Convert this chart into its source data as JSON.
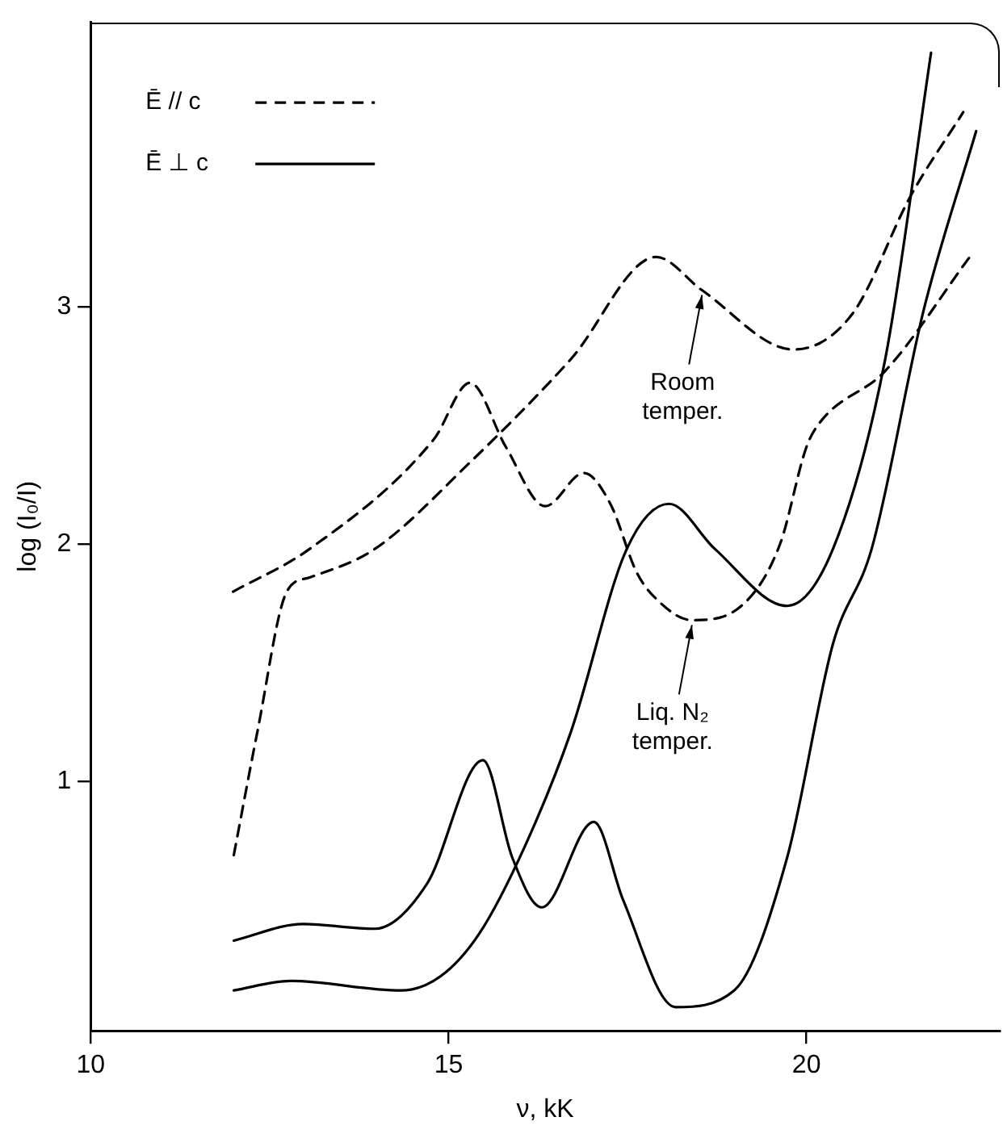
{
  "chart_data": {
    "type": "line",
    "xlabel": "ν, kK",
    "ylabel": "log (I₀/I)",
    "xlim": [
      10,
      22.7
    ],
    "ylim": [
      -0.05,
      4.2
    ],
    "xticks": [
      10,
      15,
      20
    ],
    "yticks": [
      1,
      2,
      3
    ],
    "grid": false,
    "legend": "top left",
    "marker": "none",
    "annotations": [
      {
        "text": "Room\ntemper.",
        "x": 18.54,
        "y": 3.07
      },
      {
        "text": "Liq. N₂\ntemper.",
        "x": 18.4,
        "y": 1.68
      }
    ],
    "series": [
      {
        "name": "Ē // c",
        "color": "#000000",
        "line_style": "dashed",
        "x": [
          12.0,
          12.33,
          12.74,
          13.06,
          13.97,
          15.25,
          16.71,
          17.9,
          18.54,
          19.82,
          20.64,
          21.46,
          22.19
        ],
        "values": [
          0.69,
          1.21,
          1.8,
          1.86,
          1.98,
          2.33,
          2.78,
          3.21,
          3.07,
          2.82,
          2.97,
          3.47,
          3.82
        ]
      },
      {
        "color": "#000000",
        "line_style": "dashed",
        "x": [
          11.99,
          13.06,
          14.79,
          15.3,
          15.8,
          16.35,
          16.89,
          17.26,
          17.63,
          17.9,
          18.4,
          19.09,
          19.63,
          20.0,
          20.18,
          21.1,
          22.28
        ],
        "values": [
          1.8,
          1.98,
          2.44,
          2.68,
          2.41,
          2.16,
          2.3,
          2.17,
          1.88,
          1.77,
          1.68,
          1.74,
          2.0,
          2.41,
          2.51,
          2.73,
          3.21
        ]
      },
      {
        "name": "Ē ⊥ c",
        "color": "#000000",
        "line_style": "solid",
        "x": [
          12.0,
          12.79,
          14.34,
          14.89,
          15.43,
          16.07,
          16.71,
          17.49,
          18.08,
          18.72,
          19.73,
          20.37,
          21.1,
          21.74
        ],
        "values": [
          0.12,
          0.16,
          0.12,
          0.18,
          0.36,
          0.73,
          1.21,
          1.98,
          2.17,
          1.98,
          1.74,
          1.98,
          2.78,
          4.07
        ]
      },
      {
        "color": "#000000",
        "line_style": "solid",
        "x": [
          12.0,
          12.97,
          13.97,
          14.7,
          15.48,
          15.89,
          16.3,
          17.03,
          17.44,
          18.17,
          18.99,
          19.73,
          20.37,
          20.91,
          21.64,
          22.37
        ],
        "values": [
          0.33,
          0.4,
          0.38,
          0.57,
          1.09,
          0.68,
          0.47,
          0.83,
          0.5,
          0.05,
          0.12,
          0.68,
          1.58,
          1.98,
          2.99,
          3.74
        ]
      }
    ]
  }
}
